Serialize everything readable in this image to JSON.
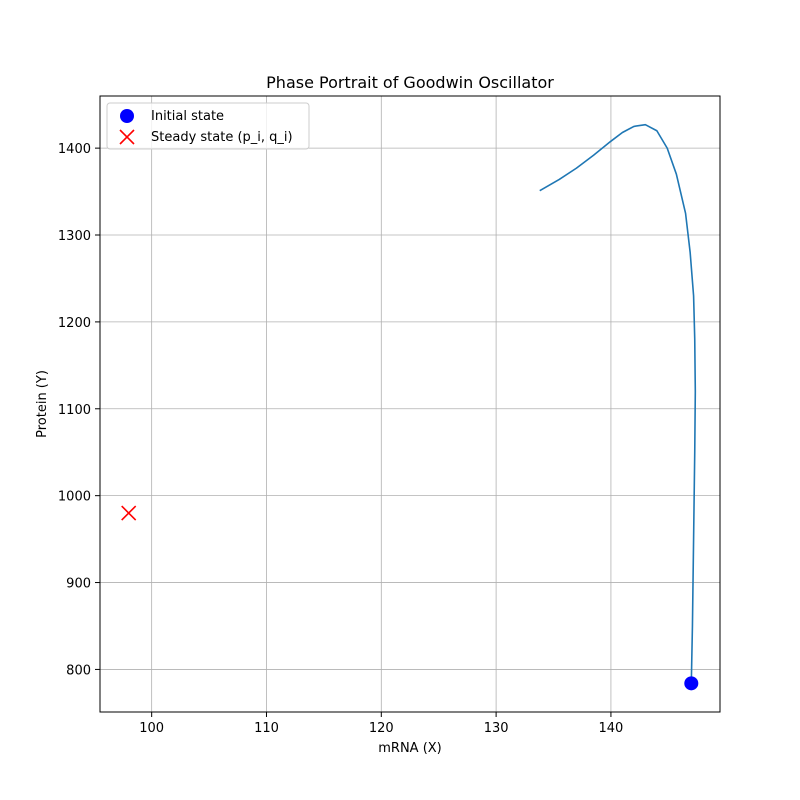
{
  "chart_data": {
    "type": "line",
    "title": "Phase Portrait of Goodwin Oscillator",
    "xlabel": "mRNA (X)",
    "ylabel": "Protein (Y)",
    "xlim": [
      95.5,
      149.5
    ],
    "ylim": [
      751,
      1460
    ],
    "xticks": [
      100,
      110,
      120,
      130,
      140
    ],
    "yticks": [
      800,
      900,
      1000,
      1100,
      1200,
      1300,
      1400
    ],
    "grid": true,
    "legend_position": "top-left",
    "colors": {
      "trajectory": "#1f77b4",
      "initial": "#0000ff",
      "steady": "#ff0000"
    },
    "series": [
      {
        "type": "line",
        "x": [
          147.0,
          147.1,
          147.2,
          147.3,
          147.35,
          147.3,
          147.2,
          146.9,
          146.5,
          145.7,
          144.9,
          144.0,
          143.0,
          142.0,
          141.0,
          140.0,
          138.5,
          137.0,
          135.5,
          133.8
        ],
        "y": [
          784,
          850,
          950,
          1050,
          1120,
          1180,
          1230,
          1280,
          1325,
          1370,
          1400,
          1420,
          1427,
          1425,
          1418,
          1408,
          1392,
          1377,
          1364,
          1351
        ]
      }
    ],
    "markers": [
      {
        "label": "Initial state",
        "marker": "circle",
        "x": 147.0,
        "y": 784
      },
      {
        "label": "Steady state (p_i, q_i)",
        "marker": "x",
        "x": 98.0,
        "y": 980
      }
    ]
  }
}
